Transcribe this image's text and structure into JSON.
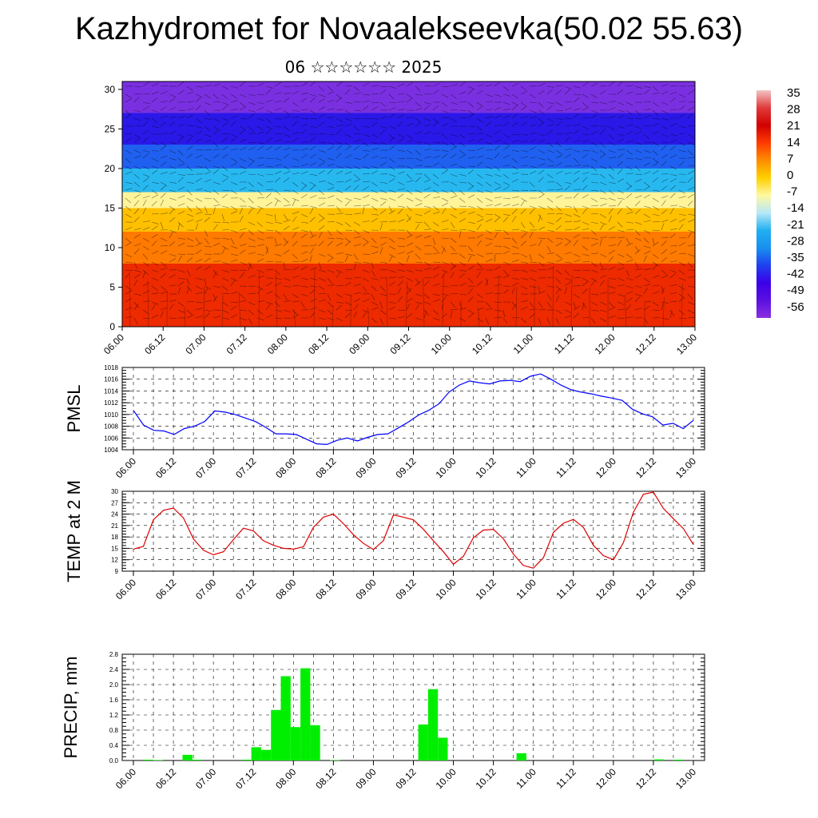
{
  "header": {
    "title": "Kazhydromet for Novaalekseevka(50.02 55.63)",
    "subtitle": "06 ☆☆☆☆☆☆ 2025"
  },
  "chart_data": [
    {
      "type": "heatmap",
      "name": "cross-section",
      "y_ticks": [
        "0",
        "5",
        "10",
        "15",
        "20",
        "25",
        "30"
      ],
      "ylim": [
        0,
        31
      ],
      "x_ticks": [
        "06.00",
        "06.12",
        "07.00",
        "07.12",
        "08.00",
        "08.12",
        "09.00",
        "09.12",
        "10.00",
        "10.12",
        "11.00",
        "11.12",
        "12.00",
        "12.12",
        "13.00"
      ],
      "colorbar": {
        "labels": [
          "35",
          "28",
          "21",
          "14",
          "7",
          "0",
          "-7",
          "-14",
          "-21",
          "-28",
          "-35",
          "-42",
          "-49",
          "-56"
        ],
        "colors": [
          "#f3c4c4",
          "#e23a3a",
          "#d10000",
          "#ff3a00",
          "#ff8c00",
          "#ffd000",
          "#fff8a0",
          "#b8e8f8",
          "#20b0f0",
          "#1890f0",
          "#2040f0",
          "#3a00e8",
          "#5a10e0",
          "#8a30e0"
        ]
      },
      "bands": [
        {
          "y0": 0,
          "y1": 8,
          "color": "#ee2a00"
        },
        {
          "y0": 8,
          "y1": 12,
          "color": "#ff7a00"
        },
        {
          "y0": 12,
          "y1": 15,
          "color": "#ffc000"
        },
        {
          "y0": 15,
          "y1": 17,
          "color": "#fff49a"
        },
        {
          "y0": 17,
          "y1": 20,
          "color": "#28b8f0"
        },
        {
          "y0": 20,
          "y1": 23,
          "color": "#2060f0"
        },
        {
          "y0": 23,
          "y1": 27,
          "color": "#2a18e8"
        },
        {
          "y0": 27,
          "y1": 31,
          "color": "#7a30e0"
        }
      ]
    },
    {
      "type": "line",
      "name": "pmsl",
      "ylabel": "PMSL",
      "ylim": [
        1004,
        1018
      ],
      "y_ticks": [
        "1018",
        "1016",
        "1014",
        "1012",
        "1010",
        "1008",
        "1006",
        "1004"
      ],
      "x_ticks": [
        "06.00",
        "06.12",
        "07.00",
        "07.12",
        "08.00",
        "08.12",
        "09.00",
        "09.12",
        "10.00",
        "10.12",
        "11.00",
        "11.12",
        "12.00",
        "12.12",
        "13.00"
      ],
      "color": "#0000ff",
      "values": [
        1010.7,
        1008.2,
        1007.3,
        1007.2,
        1006.6,
        1007.6,
        1008,
        1008.8,
        1010.6,
        1010.4,
        1010,
        1009.4,
        1008.8,
        1007.8,
        1006.7,
        1006.7,
        1006.6,
        1005.8,
        1005,
        1004.9,
        1005.6,
        1006,
        1005.5,
        1006.1,
        1006.6,
        1006.7,
        1007.7,
        1008.7,
        1009.9,
        1010.7,
        1011.8,
        1013.8,
        1015,
        1015.7,
        1015.4,
        1015.2,
        1015.7,
        1015.8,
        1015.6,
        1016.5,
        1016.9,
        1016,
        1015,
        1014.2,
        1013.8,
        1013.5,
        1013.1,
        1012.8,
        1012.4,
        1010.9,
        1010.1,
        1009.6,
        1008.2,
        1008.5,
        1007.6,
        1009
      ]
    },
    {
      "type": "line",
      "name": "temp",
      "ylabel": "TEMP at 2 M",
      "ylim": [
        9,
        30
      ],
      "y_ticks": [
        "30",
        "27",
        "24",
        "21",
        "18",
        "15",
        "12",
        "9"
      ],
      "x_ticks": [
        "06.00",
        "06.12",
        "07.00",
        "07.12",
        "08.00",
        "08.12",
        "09.00",
        "09.12",
        "10.00",
        "10.12",
        "11.00",
        "11.12",
        "12.00",
        "12.12",
        "13.00"
      ],
      "color": "#dd0000",
      "values": [
        14.8,
        15.5,
        22.5,
        25,
        25.6,
        23,
        17.5,
        14.5,
        13.3,
        14.1,
        17.3,
        20.3,
        19.6,
        17,
        15.8,
        15,
        14.8,
        15.4,
        20.5,
        23.2,
        24,
        21.5,
        18.6,
        16.3,
        14.7,
        17,
        23.8,
        23.2,
        22.5,
        20,
        17,
        14.1,
        10.8,
        12.9,
        17.8,
        19.8,
        20,
        17.5,
        13.5,
        10.5,
        9.8,
        12.5,
        19.2,
        21.6,
        22.6,
        20.5,
        15.8,
        13.1,
        12,
        16.5,
        24.5,
        29.2,
        29.8,
        25.5,
        22.8,
        20.2,
        16
      ]
    },
    {
      "type": "bar",
      "name": "precip",
      "ylabel": "PRECIP, mm",
      "ylim": [
        0,
        2.8
      ],
      "y_ticks": [
        "2.8",
        "2.4",
        "2.0",
        "1.6",
        "1.2",
        "0.8",
        "0.4",
        "0.0"
      ],
      "x_ticks": [
        "06.00",
        "06.12",
        "07.00",
        "07.12",
        "08.00",
        "08.12",
        "09.00",
        "09.12",
        "10.00",
        "10.12",
        "11.00",
        "11.12",
        "12.00",
        "12.12",
        "13.00"
      ],
      "color": "#00ee00",
      "values": [
        0,
        0.02,
        0.01,
        0,
        0,
        0.15,
        0.02,
        0,
        0,
        0,
        0,
        0.02,
        0.35,
        0.28,
        1.33,
        2.22,
        0.88,
        2.43,
        0.93,
        0,
        0.01,
        0,
        0,
        0,
        0,
        0,
        0,
        0,
        0,
        0.95,
        1.88,
        0.6,
        0,
        0,
        0,
        0,
        0,
        0,
        0,
        0.19,
        0,
        0,
        0,
        0,
        0,
        0,
        0,
        0,
        0,
        0,
        0,
        0,
        0,
        0.03,
        0,
        0.02,
        0
      ]
    }
  ]
}
